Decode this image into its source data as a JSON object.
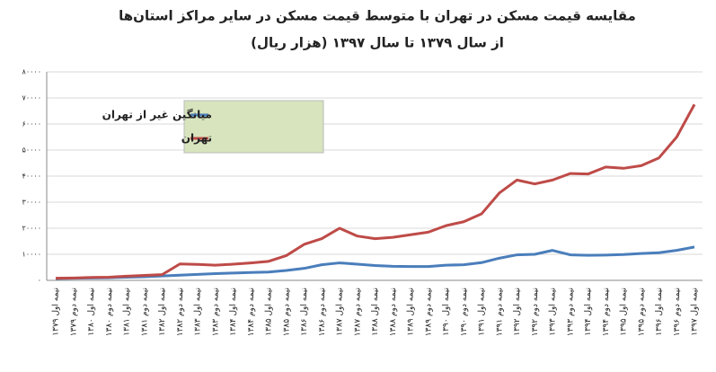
{
  "chart_data": {
    "type": "line",
    "title": "مقایسه قیمت مسکن در تهران با متوسط قیمت مسکن در سایر مراکز استان‌ها",
    "subtitle": "از سال ۱۳۷۹ تا سال ۱۳۹۷ (هزار ریال)",
    "categories": [
      "نیمه اول ۱۳۷۹",
      "نیمه دوم ۱۳۷۹",
      "نیمه اول ۱۳۸۰",
      "نیمه دوم ۱۳۸۰",
      "نیمه اول ۱۳۸۱",
      "نیمه دوم ۱۳۸۱",
      "نیمه اول ۱۳۸۲",
      "نیمه دوم ۱۳۸۲",
      "نیمه اول ۱۳۸۳",
      "نیمه دوم ۱۳۸۳",
      "نیمه اول ۱۳۸۴",
      "نیمه دوم ۱۳۸۴",
      "نیمه اول ۱۳۸۵",
      "نیمه دوم ۱۳۸۵",
      "نیمه اول ۱۳۸۶",
      "نیمه دوم ۱۳۸۶",
      "نیمه اول ۱۳۸۷",
      "نیمه دوم ۱۳۸۷",
      "نیمه اول ۱۳۸۸",
      "نیمه دوم ۱۳۸۸",
      "نیمه اول ۱۳۸۹",
      "نیمه دوم ۱۳۸۹",
      "نیمه اول ۱۳۹۰",
      "نیمه دوم ۱۳۹۰",
      "نیمه اول ۱۳۹۱",
      "نیمه دوم ۱۳۹۱",
      "نیمه اول ۱۳۹۲",
      "نیمه دوم ۱۳۹۲",
      "نیمه اول ۱۳۹۳",
      "نیمه دوم ۱۳۹۳",
      "نیمه اول ۱۳۹۴",
      "نیمه دوم ۱۳۹۴",
      "نیمه اول ۱۳۹۵",
      "نیمه دوم ۱۳۹۵",
      "نیمه اول ۱۳۹۶",
      "نیمه دوم ۱۳۹۶",
      "نیمه اول ۱۳۹۷"
    ],
    "series": [
      {
        "name": "میانگین غیر از تهران",
        "color": "#4a7ebb",
        "values": [
          700,
          800,
          900,
          1000,
          1200,
          1400,
          1700,
          2000,
          2300,
          2600,
          2800,
          3000,
          3200,
          3800,
          4600,
          6000,
          6700,
          6200,
          5700,
          5400,
          5300,
          5300,
          5800,
          6000,
          6800,
          8500,
          9800,
          10000,
          11500,
          9800,
          9600,
          9700,
          9900,
          10300,
          10600,
          11500,
          12800
        ]
      },
      {
        "name": "تهران",
        "color": "#be4b48",
        "values": [
          800,
          900,
          1100,
          1200,
          1600,
          1900,
          2200,
          6300,
          6100,
          5800,
          6200,
          6700,
          7300,
          9500,
          13800,
          16000,
          20000,
          17000,
          16000,
          16500,
          17500,
          18500,
          21000,
          22500,
          25500,
          33500,
          38500,
          37000,
          38500,
          41000,
          40800,
          43500,
          43000,
          44000,
          47000,
          55000,
          67500
        ]
      }
    ],
    "ylim": [
      0,
      80000
    ],
    "yticks": [
      {
        "value": 0,
        "label": "۰"
      },
      {
        "value": 10000,
        "label": "۱۰۰۰۰"
      },
      {
        "value": 20000,
        "label": "۲۰۰۰۰"
      },
      {
        "value": 30000,
        "label": "۳۰۰۰۰"
      },
      {
        "value": 40000,
        "label": "۴۰۰۰۰"
      },
      {
        "value": 50000,
        "label": "۵۰۰۰۰"
      },
      {
        "value": 60000,
        "label": "۶۰۰۰۰"
      },
      {
        "value": 70000,
        "label": "۷۰۰۰۰"
      },
      {
        "value": 80000,
        "label": "۸۰۰۰۰"
      }
    ],
    "grid": true,
    "legend_background": "#d7e4bd"
  }
}
